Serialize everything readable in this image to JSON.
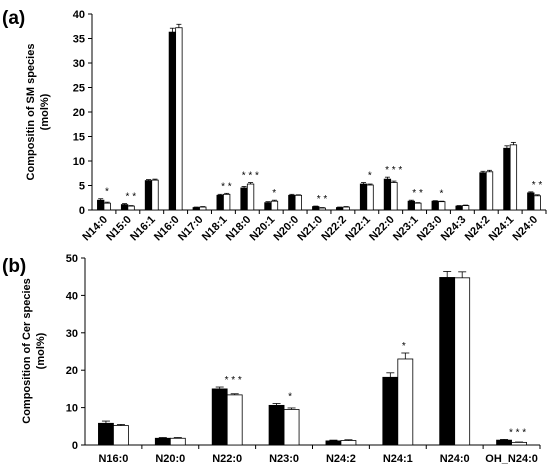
{
  "chart_data": [
    {
      "type": "bar",
      "panel_label": "(a)",
      "ylabel_lines": [
        "Compositin of SM species",
        "(mol%)"
      ],
      "ylim": [
        0,
        40
      ],
      "yticks": [
        0,
        5,
        10,
        15,
        20,
        25,
        30,
        35,
        40
      ],
      "categories": [
        "N14:0",
        "N15:0",
        "N16:1",
        "N16:0",
        "N17:0",
        "N18:1",
        "N18:0",
        "N20:1",
        "N20:0",
        "N21:0",
        "N22:2",
        "N22:1",
        "N22:0",
        "N23:1",
        "N23:0",
        "N24:3",
        "N24:2",
        "N24:1",
        "N24:0"
      ],
      "series": [
        {
          "fill": "#000000",
          "values": [
            2.0,
            1.1,
            6.0,
            36.3,
            0.5,
            3.0,
            4.5,
            1.5,
            3.0,
            0.7,
            0.5,
            5.3,
            6.3,
            1.8,
            1.8,
            0.8,
            7.6,
            12.6,
            3.5
          ],
          "errors": [
            0.3,
            0.2,
            0.2,
            0.8,
            0.1,
            0.2,
            0.3,
            0.2,
            0.2,
            0.1,
            0.1,
            0.3,
            0.4,
            0.2,
            0.1,
            0.1,
            0.3,
            0.5,
            0.2
          ]
        },
        {
          "fill": "#ffffff",
          "values": [
            1.4,
            0.8,
            6.1,
            37.2,
            0.6,
            3.2,
            5.3,
            1.8,
            3.0,
            0.4,
            0.6,
            5.1,
            5.6,
            1.4,
            1.7,
            0.9,
            7.8,
            13.3,
            2.9
          ],
          "errors": [
            0.2,
            0.1,
            0.2,
            0.7,
            0.1,
            0.2,
            0.3,
            0.2,
            0.1,
            0.1,
            0.1,
            0.2,
            0.3,
            0.1,
            0.1,
            0.1,
            0.3,
            0.5,
            0.2
          ]
        }
      ],
      "significance": [
        "*",
        "* *",
        "",
        "",
        "",
        "* *",
        "* * *",
        "*",
        "",
        "* *",
        "",
        "*",
        "* * *",
        "* *",
        "*",
        "",
        "",
        "",
        "* *"
      ]
    },
    {
      "type": "bar",
      "panel_label": "(b)",
      "ylabel_lines": [
        "Composition of Cer species",
        "(mol%)"
      ],
      "ylim": [
        0,
        50
      ],
      "yticks": [
        0,
        10,
        20,
        30,
        40,
        50
      ],
      "categories": [
        "N16:0",
        "N20:0",
        "N22:0",
        "N23:0",
        "N24:2",
        "N24:1",
        "N24:0",
        "OH_N24:0"
      ],
      "series": [
        {
          "fill": "#000000",
          "values": [
            5.8,
            1.8,
            15.0,
            10.6,
            1.1,
            18.1,
            44.8,
            1.3
          ],
          "errors": [
            0.6,
            0.2,
            0.5,
            0.5,
            0.2,
            1.2,
            1.6,
            0.2
          ]
        },
        {
          "fill": "#ffffff",
          "values": [
            5.2,
            1.8,
            13.4,
            9.5,
            1.2,
            23.0,
            44.7,
            0.7
          ],
          "errors": [
            0.3,
            0.2,
            0.3,
            0.4,
            0.2,
            1.6,
            1.6,
            0.1
          ]
        }
      ],
      "significance": [
        "",
        "",
        "* * *",
        "*",
        "",
        "*",
        "",
        "* * *"
      ]
    }
  ]
}
